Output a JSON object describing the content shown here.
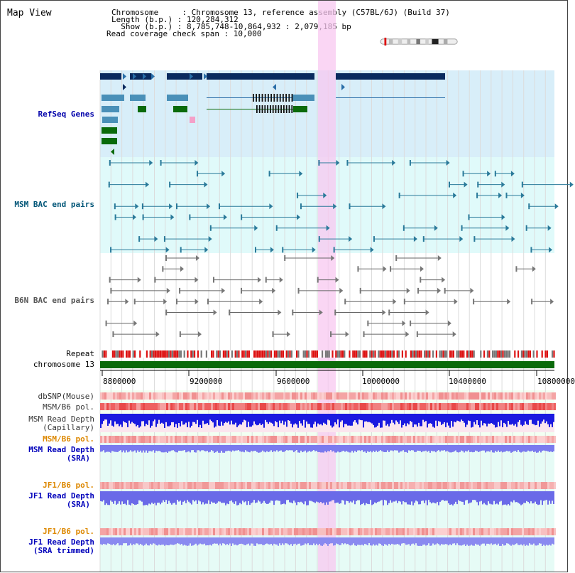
{
  "page": {
    "title": "Map View"
  },
  "header": {
    "line1": "Chromosome     : Chromosome 13, reference assembly (C57BL/6J) (Build 37)",
    "line2": "Length (b.p.) : 120,284,312",
    "line3": "  Show (b.p.) : 8,785,748-10,864,932 : 2,079,185 bp",
    "line4": "Read coverage check span : 10,000"
  },
  "tracks": {
    "refseq": "RefSeq Genes",
    "msm_bac": "MSM BAC end pairs",
    "b6n_bac": "B6N BAC end pairs",
    "repeat": "Repeat",
    "chromosome": "chromosome 13",
    "dbsnp": "dbSNP(Mouse)",
    "msm_b6_pol_1": "MSM/B6 pol.",
    "msm_read_depth_cap_1": "MSM Read Depth",
    "msm_read_depth_cap_2": "(Capillary)",
    "msm_b6_pol_2": "MSM/B6 pol.",
    "msm_read_depth_sra_1": "MSM Read Depth",
    "msm_read_depth_sra_2": "(SRA)",
    "jf1_b6_pol_1": "JF1/B6 pol.",
    "jf1_read_depth_1": "JF1 Read Depth",
    "jf1_read_depth_2": "(SRA)",
    "jf1_b6_pol_2": "JF1/B6 pol.",
    "jf1_read_depth_trim_1": "JF1 Read Depth",
    "jf1_read_depth_trim_2": "(SRA trimmed)"
  },
  "axis": {
    "ticks": [
      "8800000",
      "9200000",
      "9600000",
      "10000000",
      "10400000",
      "10800000"
    ]
  },
  "colors": {
    "refseq_label": "#0000aa",
    "msm_label": "#005577",
    "b6n_label": "#555555",
    "orange_label": "#dd8800",
    "blue_label": "#0000bb",
    "gene_dark": "#0a2a5e",
    "gene_steel": "#4a90b8",
    "gene_green": "#0a6a0a",
    "highlight": "#f8c8f0",
    "chrom_bar": "#0a6a0a"
  }
}
